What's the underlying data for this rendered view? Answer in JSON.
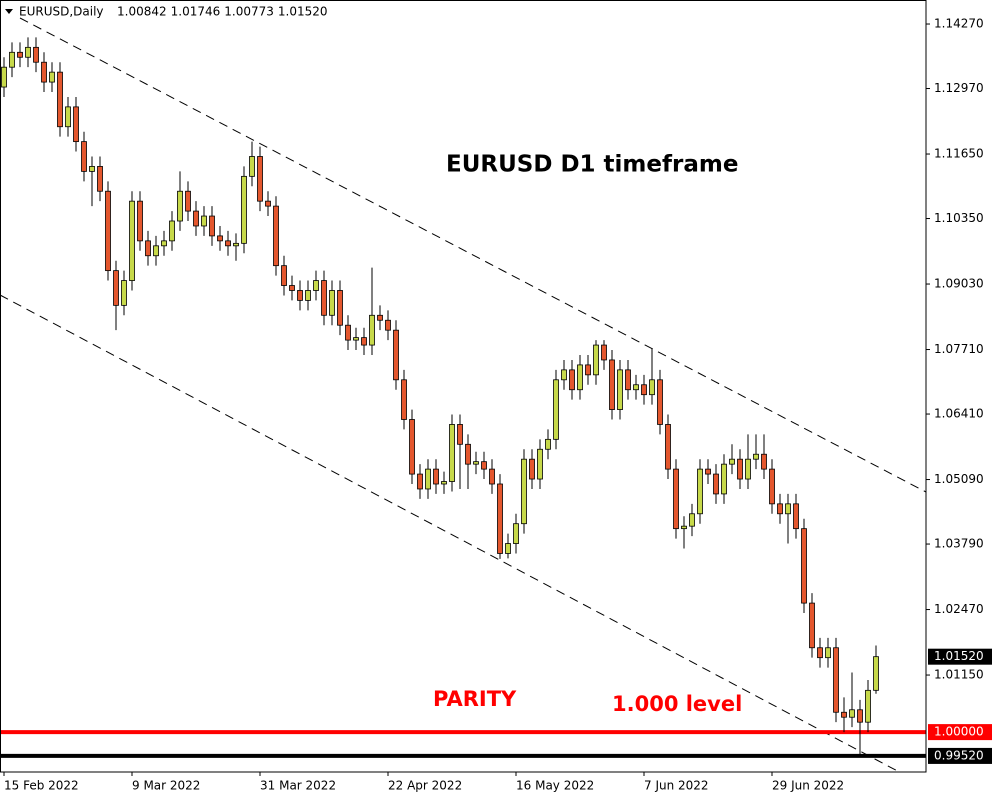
{
  "chart_data": {
    "type": "candlestick",
    "symbol": "EURUSD,Daily",
    "header_values": [
      "1.00842",
      "1.01746",
      "1.00773",
      "1.01520"
    ],
    "title": "EURUSD D1 timeframe",
    "annotations": [
      {
        "text": "PARITY",
        "color": "#ff0000"
      },
      {
        "text": "1.000 level",
        "color": "#ff0000"
      }
    ],
    "categories": [
      "15 Feb 2022",
      null,
      null,
      null,
      null,
      null,
      null,
      null,
      null,
      null,
      null,
      null,
      null,
      null,
      null,
      null,
      "9 Mar 2022",
      null,
      null,
      null,
      null,
      null,
      null,
      null,
      null,
      null,
      null,
      null,
      null,
      null,
      null,
      null,
      "31 Mar 2022",
      null,
      null,
      null,
      null,
      null,
      null,
      null,
      null,
      null,
      null,
      null,
      null,
      null,
      null,
      null,
      "22 Apr 2022",
      null,
      null,
      null,
      null,
      null,
      null,
      null,
      null,
      null,
      null,
      null,
      null,
      null,
      null,
      null,
      "16 May 2022",
      null,
      null,
      null,
      null,
      null,
      null,
      null,
      null,
      null,
      null,
      null,
      null,
      null,
      null,
      null,
      "7 Jun 2022",
      null,
      null,
      null,
      null,
      null,
      null,
      null,
      null,
      null,
      null,
      null,
      null,
      null,
      null,
      null,
      "29 Jun 2022",
      null,
      null,
      null,
      null,
      null,
      null,
      null,
      null,
      null,
      null,
      null,
      null,
      null
    ],
    "open": [
      1.13,
      1.134,
      1.137,
      1.136,
      1.138,
      1.135,
      1.131,
      1.133,
      1.122,
      1.126,
      1.119,
      1.113,
      1.114,
      1.109,
      1.093,
      1.086,
      1.091,
      1.107,
      1.099,
      1.096,
      1.098,
      1.099,
      1.103,
      1.109,
      1.105,
      1.102,
      1.104,
      1.1,
      1.099,
      1.098,
      1.0985,
      1.112,
      1.116,
      1.107,
      1.106,
      1.094,
      1.09,
      1.089,
      1.087,
      1.089,
      1.091,
      1.084,
      1.089,
      1.082,
      1.079,
      1.0795,
      1.078,
      1.084,
      1.083,
      1.081,
      1.071,
      1.063,
      1.052,
      1.049,
      1.053,
      1.05,
      1.0505,
      1.062,
      1.058,
      1.054,
      1.0545,
      1.053,
      1.05,
      1.036,
      1.038,
      1.042,
      1.055,
      1.051,
      1.057,
      1.059,
      1.071,
      1.073,
      1.069,
      1.074,
      1.072,
      1.078,
      1.075,
      1.065,
      1.073,
      1.069,
      1.07,
      1.068,
      1.071,
      1.062,
      1.053,
      1.041,
      1.0415,
      1.044,
      1.053,
      1.052,
      1.048,
      1.054,
      1.055,
      1.051,
      1.055,
      1.056,
      1.053,
      1.046,
      1.044,
      1.046,
      1.041,
      1.026,
      1.017,
      1.015,
      1.017,
      1.004,
      1.003,
      1.0045,
      1.002,
      1.00842
    ],
    "high": [
      1.136,
      1.139,
      1.139,
      1.14,
      1.14,
      1.137,
      1.135,
      1.135,
      1.128,
      1.128,
      1.121,
      1.116,
      1.116,
      1.111,
      1.095,
      1.093,
      1.109,
      1.109,
      1.101,
      1.1,
      1.101,
      1.105,
      1.113,
      1.111,
      1.107,
      1.106,
      1.106,
      1.102,
      1.101,
      1.1005,
      1.114,
      1.119,
      1.118,
      1.109,
      1.108,
      1.096,
      1.092,
      1.091,
      1.091,
      1.093,
      1.093,
      1.091,
      1.091,
      1.084,
      1.0815,
      1.0815,
      1.0936,
      1.086,
      1.085,
      1.083,
      1.073,
      1.065,
      1.054,
      1.055,
      1.055,
      1.0525,
      1.064,
      1.064,
      1.06,
      1.0565,
      1.0565,
      1.055,
      1.052,
      1.04,
      1.044,
      1.057,
      1.057,
      1.059,
      1.061,
      1.073,
      1.075,
      1.075,
      1.076,
      1.076,
      1.079,
      1.079,
      1.077,
      1.075,
      1.075,
      1.072,
      1.072,
      1.0774,
      1.073,
      1.064,
      1.055,
      1.0435,
      1.046,
      1.055,
      1.055,
      1.054,
      1.056,
      1.058,
      1.057,
      1.06,
      1.06,
      1.06,
      1.055,
      1.048,
      1.048,
      1.048,
      1.043,
      1.028,
      1.019,
      1.019,
      1.019,
      1.007,
      1.012,
      1.0065,
      1.0105,
      1.01746
    ],
    "low": [
      1.128,
      1.132,
      1.134,
      1.134,
      1.133,
      1.129,
      1.129,
      1.12,
      1.12,
      1.117,
      1.111,
      1.106,
      1.107,
      1.091,
      1.081,
      1.084,
      1.089,
      1.097,
      1.094,
      1.094,
      1.096,
      1.097,
      1.101,
      1.103,
      1.1,
      1.1,
      1.098,
      1.097,
      1.096,
      1.095,
      1.0965,
      1.11,
      1.105,
      1.104,
      1.092,
      1.088,
      1.087,
      1.085,
      1.085,
      1.087,
      1.082,
      1.082,
      1.08,
      1.077,
      1.077,
      1.076,
      1.076,
      1.081,
      1.079,
      1.069,
      1.061,
      1.05,
      1.047,
      1.047,
      1.048,
      1.048,
      1.0485,
      1.049,
      1.049,
      1.052,
      1.051,
      1.048,
      1.0349,
      1.035,
      1.036,
      1.04,
      1.049,
      1.049,
      1.055,
      1.057,
      1.069,
      1.067,
      1.067,
      1.07,
      1.07,
      1.073,
      1.063,
      1.063,
      1.067,
      1.067,
      1.066,
      1.066,
      1.06,
      1.051,
      1.039,
      1.037,
      1.0395,
      1.042,
      1.05,
      1.046,
      1.046,
      1.052,
      1.049,
      1.049,
      1.053,
      1.051,
      1.044,
      1.042,
      1.038,
      1.039,
      1.024,
      1.015,
      1.013,
      1.013,
      1.002,
      1.0,
      1.001,
      0.9952,
      1.0,
      1.00773
    ],
    "close": [
      1.134,
      1.137,
      1.136,
      1.138,
      1.135,
      1.131,
      1.133,
      1.122,
      1.126,
      1.119,
      1.113,
      1.114,
      1.109,
      1.093,
      1.086,
      1.091,
      1.107,
      1.099,
      1.096,
      1.098,
      1.099,
      1.103,
      1.109,
      1.105,
      1.102,
      1.104,
      1.1,
      1.099,
      1.098,
      1.0985,
      1.112,
      1.116,
      1.107,
      1.106,
      1.094,
      1.09,
      1.089,
      1.087,
      1.089,
      1.091,
      1.084,
      1.089,
      1.082,
      1.079,
      1.0795,
      1.078,
      1.084,
      1.083,
      1.081,
      1.071,
      1.063,
      1.052,
      1.049,
      1.053,
      1.05,
      1.0505,
      1.062,
      1.058,
      1.054,
      1.0545,
      1.053,
      1.05,
      1.036,
      1.038,
      1.042,
      1.055,
      1.051,
      1.057,
      1.059,
      1.071,
      1.073,
      1.069,
      1.074,
      1.072,
      1.078,
      1.075,
      1.065,
      1.073,
      1.069,
      1.07,
      1.068,
      1.071,
      1.062,
      1.053,
      1.041,
      1.0415,
      1.044,
      1.053,
      1.052,
      1.048,
      1.054,
      1.055,
      1.051,
      1.055,
      1.056,
      1.053,
      1.046,
      1.044,
      1.046,
      1.041,
      1.026,
      1.017,
      1.015,
      1.017,
      1.004,
      1.003,
      1.0045,
      1.002,
      1.00842,
      1.0152
    ],
    "up_color": "#c7d94a",
    "down_color": "#e4572e",
    "ylim": [
      0.99196,
      1.14754
    ],
    "yticks": [
      {
        "value": 1.1427,
        "label": "1.14270"
      },
      {
        "value": 1.1297,
        "label": "1.12970"
      },
      {
        "value": 1.1165,
        "label": "1.11650"
      },
      {
        "value": 1.1035,
        "label": "1.10350"
      },
      {
        "value": 1.0903,
        "label": "1.09030"
      },
      {
        "value": 1.0771,
        "label": "1.07710"
      },
      {
        "value": 1.0641,
        "label": "1.06410"
      },
      {
        "value": 1.0509,
        "label": "1.05090"
      },
      {
        "value": 1.0379,
        "label": "1.03790"
      },
      {
        "value": 1.0247,
        "label": "1.02470"
      },
      {
        "value": 1.0115,
        "label": "1.01150"
      }
    ],
    "levels": [
      {
        "value": 1.0,
        "label": "1.00000",
        "color": "#ff0000"
      },
      {
        "value": 0.9952,
        "label": "0.99520",
        "color": "#000000"
      }
    ],
    "current_price": {
      "value": 1.0152,
      "label": "1.01520"
    }
  }
}
